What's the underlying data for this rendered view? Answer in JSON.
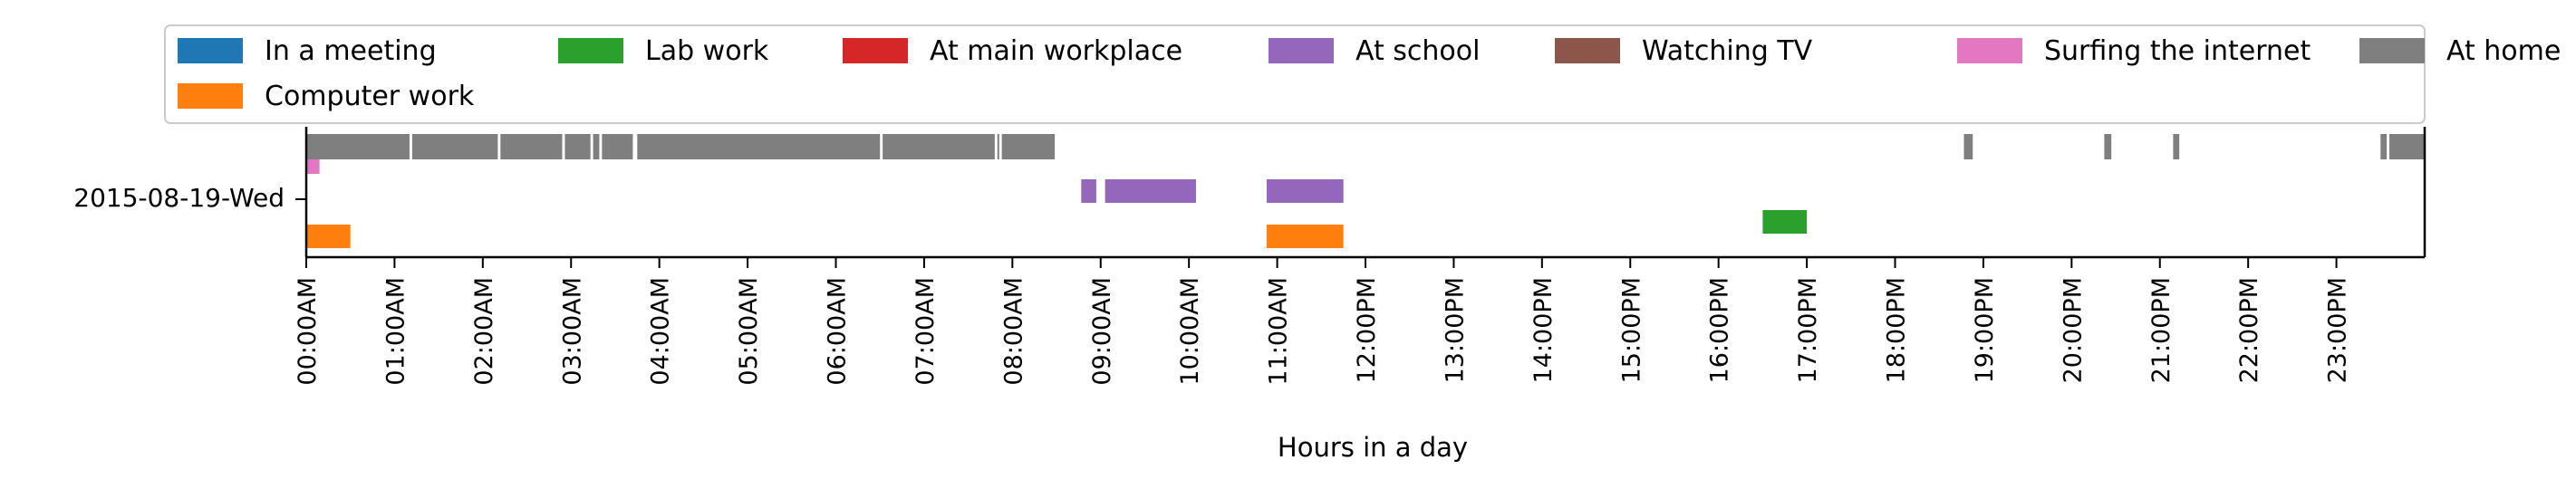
{
  "chart_data": {
    "type": "timeline",
    "title": "",
    "xlabel": "Hours in a day",
    "ylabel": "",
    "category_label": "2015-08-19-Wed",
    "x_range_hours": [
      0,
      24
    ],
    "x_ticks": [
      "00:00AM",
      "01:00AM",
      "02:00AM",
      "03:00AM",
      "04:00AM",
      "05:00AM",
      "06:00AM",
      "07:00AM",
      "08:00AM",
      "09:00AM",
      "10:00AM",
      "11:00AM",
      "12:00PM",
      "13:00PM",
      "14:00PM",
      "15:00PM",
      "16:00PM",
      "17:00PM",
      "18:00PM",
      "19:00PM",
      "20:00PM",
      "21:00PM",
      "22:00PM",
      "23:00PM"
    ],
    "grid": false,
    "legend_position": "top",
    "legend": [
      {
        "label": "In a meeting",
        "color": "#1f77b4"
      },
      {
        "label": "Lab work",
        "color": "#2ca02c"
      },
      {
        "label": "At main workplace",
        "color": "#d62728"
      },
      {
        "label": "At school",
        "color": "#9467bd"
      },
      {
        "label": "Watching TV",
        "color": "#8c564b"
      },
      {
        "label": "Surfing the internet",
        "color": "#e377c2"
      },
      {
        "label": "At home",
        "color": "#7f7f7f"
      },
      {
        "label": "Computer work",
        "color": "#ff7f0e"
      }
    ],
    "series": [
      {
        "name": "At home",
        "color": "#7f7f7f",
        "lane": 0,
        "intervals": [
          [
            0.0,
            1.17
          ],
          [
            1.2,
            2.17
          ],
          [
            2.2,
            2.9
          ],
          [
            2.93,
            3.22
          ],
          [
            3.25,
            3.32
          ],
          [
            3.35,
            3.7
          ],
          [
            3.75,
            6.5
          ],
          [
            6.53,
            7.8
          ],
          [
            7.83,
            7.85
          ],
          [
            7.88,
            8.48
          ],
          [
            18.78,
            18.88
          ],
          [
            20.37,
            20.45
          ],
          [
            21.15,
            21.22
          ],
          [
            23.5,
            23.57
          ],
          [
            23.6,
            24.0
          ]
        ]
      },
      {
        "name": "Surfing the internet",
        "color": "#e377c2",
        "lane": 1,
        "intervals": [
          [
            0.0,
            0.15
          ]
        ]
      },
      {
        "name": "At school",
        "color": "#9467bd",
        "lane": 2,
        "intervals": [
          [
            8.78,
            8.95
          ],
          [
            9.05,
            10.08
          ],
          [
            10.88,
            11.75
          ]
        ]
      },
      {
        "name": "Lab work",
        "color": "#2ca02c",
        "lane": 3,
        "intervals": [
          [
            16.5,
            17.0
          ]
        ]
      },
      {
        "name": "Computer work",
        "color": "#ff7f0e",
        "lane": 4,
        "intervals": [
          [
            0.0,
            0.5
          ],
          [
            10.88,
            11.75
          ]
        ]
      }
    ]
  }
}
